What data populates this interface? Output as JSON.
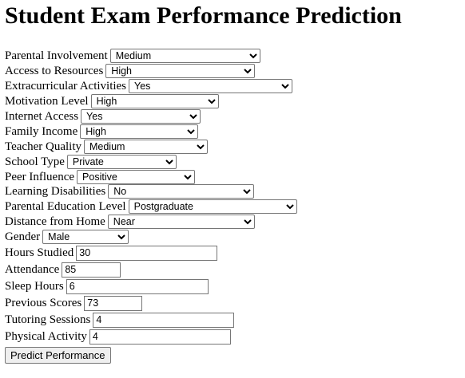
{
  "title": "Student Exam Performance Prediction",
  "selects": [
    {
      "label": "Parental Involvement",
      "value": "Medium"
    },
    {
      "label": "Access to Resources",
      "value": "High"
    },
    {
      "label": "Extracurricular Activities",
      "value": "Yes"
    },
    {
      "label": "Motivation Level",
      "value": "High"
    },
    {
      "label": "Internet Access",
      "value": "Yes"
    },
    {
      "label": "Family Income",
      "value": "High"
    },
    {
      "label": "Teacher Quality",
      "value": "Medium"
    },
    {
      "label": "School Type",
      "value": "Private"
    },
    {
      "label": "Peer Influence",
      "value": "Positive"
    },
    {
      "label": "Learning Disabilities",
      "value": "No"
    },
    {
      "label": "Parental Education Level",
      "value": "Postgraduate"
    },
    {
      "label": "Distance from Home",
      "value": "Near"
    },
    {
      "label": "Gender",
      "value": "Male"
    }
  ],
  "inputs": [
    {
      "label": "Hours Studied",
      "value": "30"
    },
    {
      "label": "Attendance",
      "value": "85"
    },
    {
      "label": "Sleep Hours",
      "value": "6"
    },
    {
      "label": "Previous Scores",
      "value": "73"
    },
    {
      "label": "Tutoring Sessions",
      "value": "4"
    },
    {
      "label": "Physical Activity",
      "value": "4"
    }
  ],
  "submit_label": "Predict Performance"
}
